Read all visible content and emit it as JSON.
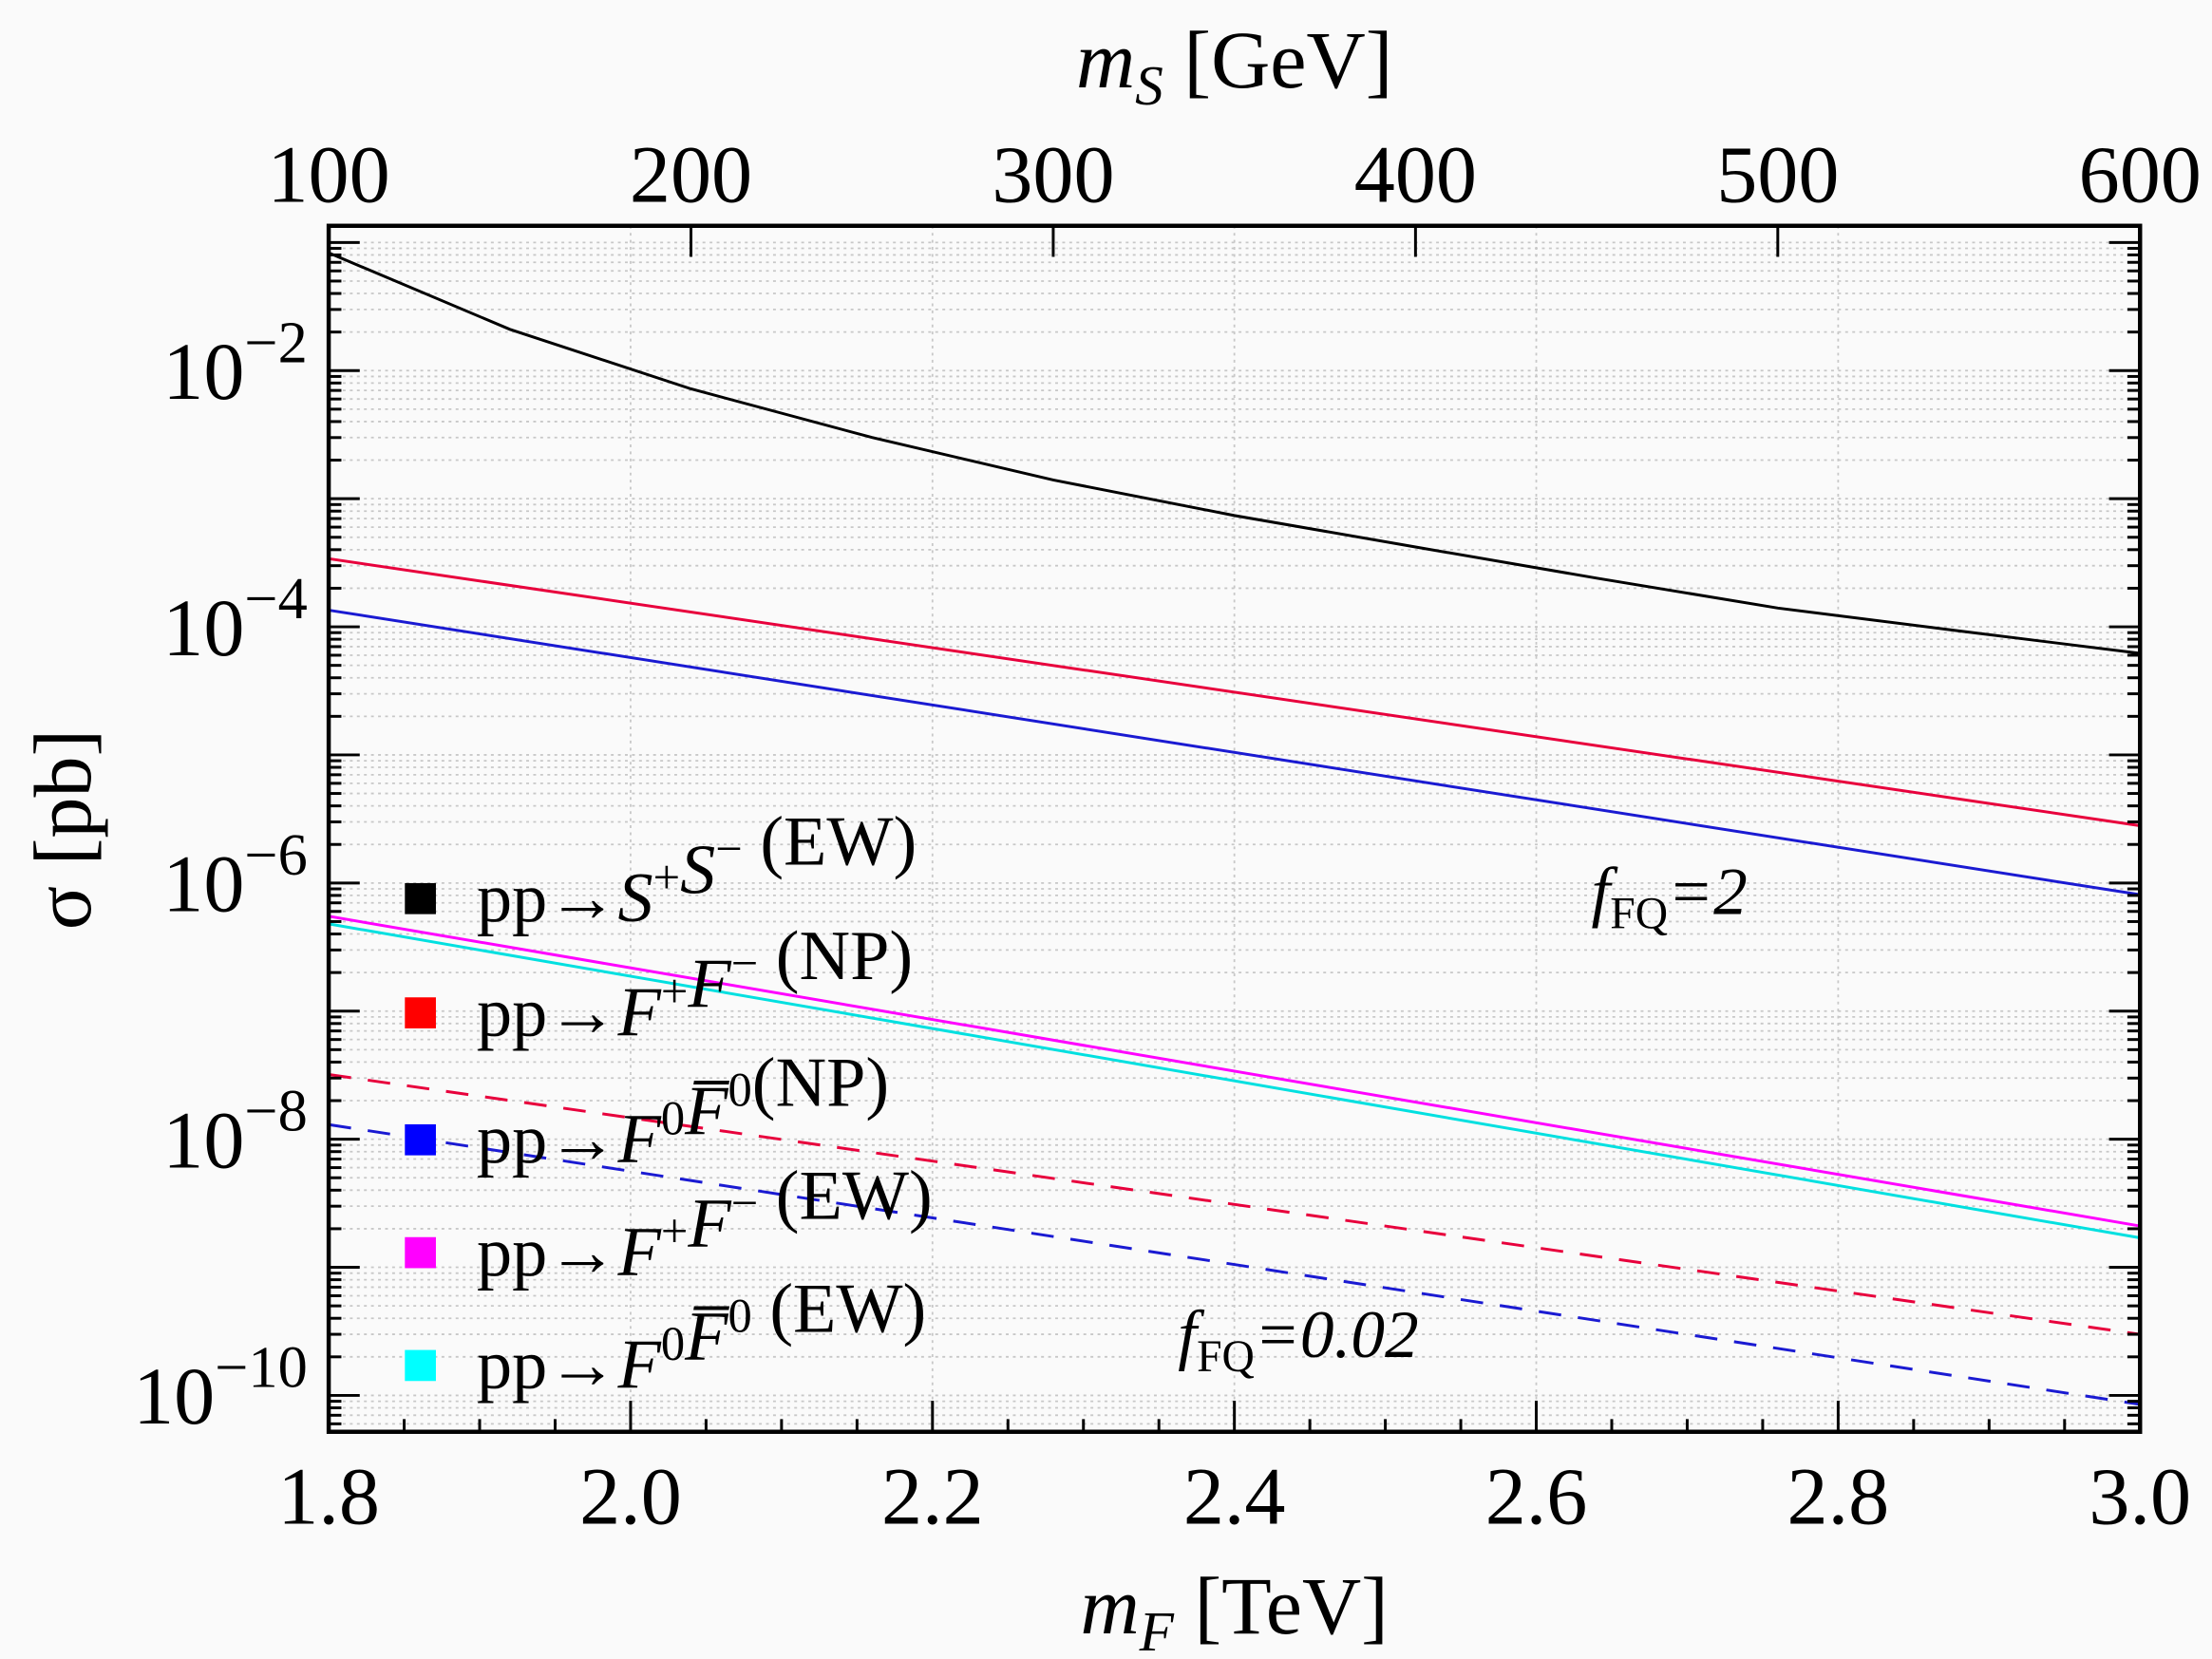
{
  "chart_data": {
    "type": "line",
    "xlabel_bottom": "m_F [TeV]",
    "xlabel_top": "m_S [GeV]",
    "ylabel": "σ [pb]",
    "xlim_bottom": [
      1.8,
      3.0
    ],
    "xlim_top": [
      100,
      600
    ],
    "ylim": [
      5.2e-11,
      0.135
    ],
    "yscale": "log",
    "grid": true,
    "x_ticks_bottom": [
      "1.8",
      "2.0",
      "2.2",
      "2.4",
      "2.6",
      "2.8",
      "3.0"
    ],
    "x_ticks_top": [
      "100",
      "200",
      "300",
      "400",
      "500",
      "600"
    ],
    "y_ticks": [
      {
        "value": 0.01,
        "base": "10",
        "exp": "−2"
      },
      {
        "value": 0.0001,
        "base": "10",
        "exp": "−4"
      },
      {
        "value": 1e-06,
        "base": "10",
        "exp": "−6"
      },
      {
        "value": 1e-08,
        "base": "10",
        "exp": "−8"
      },
      {
        "value": 1e-10,
        "base": "10",
        "exp": "−10"
      }
    ],
    "legend_placement": "left",
    "legend": [
      {
        "pre": "pp→",
        "a": "S",
        "asup": "+",
        "b": "S",
        "bsup": "−",
        "post": " (EW)",
        "color": "#000000"
      },
      {
        "pre": "pp→",
        "a": "F",
        "asup": "+",
        "b": "F",
        "bsup": "−",
        "post": " (NP)",
        "color": "#ff0000"
      },
      {
        "pre": "pp→",
        "a": "F",
        "asup": "0",
        "b": "F̅",
        "bsup": "0",
        "post": "(NP)",
        "color": "#0000ff"
      },
      {
        "pre": "pp→",
        "a": "F",
        "asup": "+",
        "b": "F",
        "bsup": "−",
        "post": " (EW)",
        "color": "#ff00ff"
      },
      {
        "pre": "pp→",
        "a": "F",
        "asup": "0",
        "b": "F̅",
        "bsup": "0",
        "post": " (EW)",
        "color": "#00ffff"
      }
    ],
    "annotations": [
      {
        "f": "f",
        "sub": "FQ",
        "rest": "=2"
      },
      {
        "f": "f",
        "sub": "FQ",
        "rest": "=0.02"
      }
    ],
    "series": [
      {
        "key": "SS_EW",
        "axis": "top",
        "color": "#000000",
        "dash": false,
        "x": [
          100,
          150,
          200,
          250,
          300,
          350,
          400,
          450,
          500,
          550,
          600
        ],
        "y": [
          0.083,
          0.021,
          0.0072,
          0.003,
          0.0014,
          0.00074,
          0.00042,
          0.00024,
          0.00014,
          9.3e-05,
          6.2e-05
        ]
      },
      {
        "key": "FpFm_NP_fFQ2",
        "axis": "bottom",
        "color": "#e8003c",
        "dash": false,
        "x": [
          1.8,
          3.0
        ],
        "y": [
          0.00034,
          2.8e-06
        ]
      },
      {
        "key": "F0F0_NP_fFQ2",
        "axis": "bottom",
        "color": "#1a1ad2",
        "dash": false,
        "x": [
          1.8,
          3.0
        ],
        "y": [
          0.000135,
          8.1e-07
        ]
      },
      {
        "key": "FpFm_EW",
        "axis": "bottom",
        "color": "#ff00ff",
        "dash": false,
        "x": [
          1.8,
          3.0
        ],
        "y": [
          5.5e-07,
          2.1e-09
        ]
      },
      {
        "key": "F0F0_EW",
        "axis": "bottom",
        "color": "#00e0e0",
        "dash": false,
        "x": [
          1.8,
          3.0
        ],
        "y": [
          4.8e-07,
          1.7e-09
        ]
      },
      {
        "key": "FpFm_NP_fFQ002",
        "axis": "bottom",
        "color": "#e8003c",
        "dash": true,
        "x": [
          1.8,
          3.0
        ],
        "y": [
          3.2e-08,
          3e-10
        ]
      },
      {
        "key": "F0F0_NP_fFQ002",
        "axis": "bottom",
        "color": "#1a1ad2",
        "dash": true,
        "x": [
          1.8,
          3.0
        ],
        "y": [
          1.3e-08,
          8.5e-11
        ]
      }
    ]
  }
}
